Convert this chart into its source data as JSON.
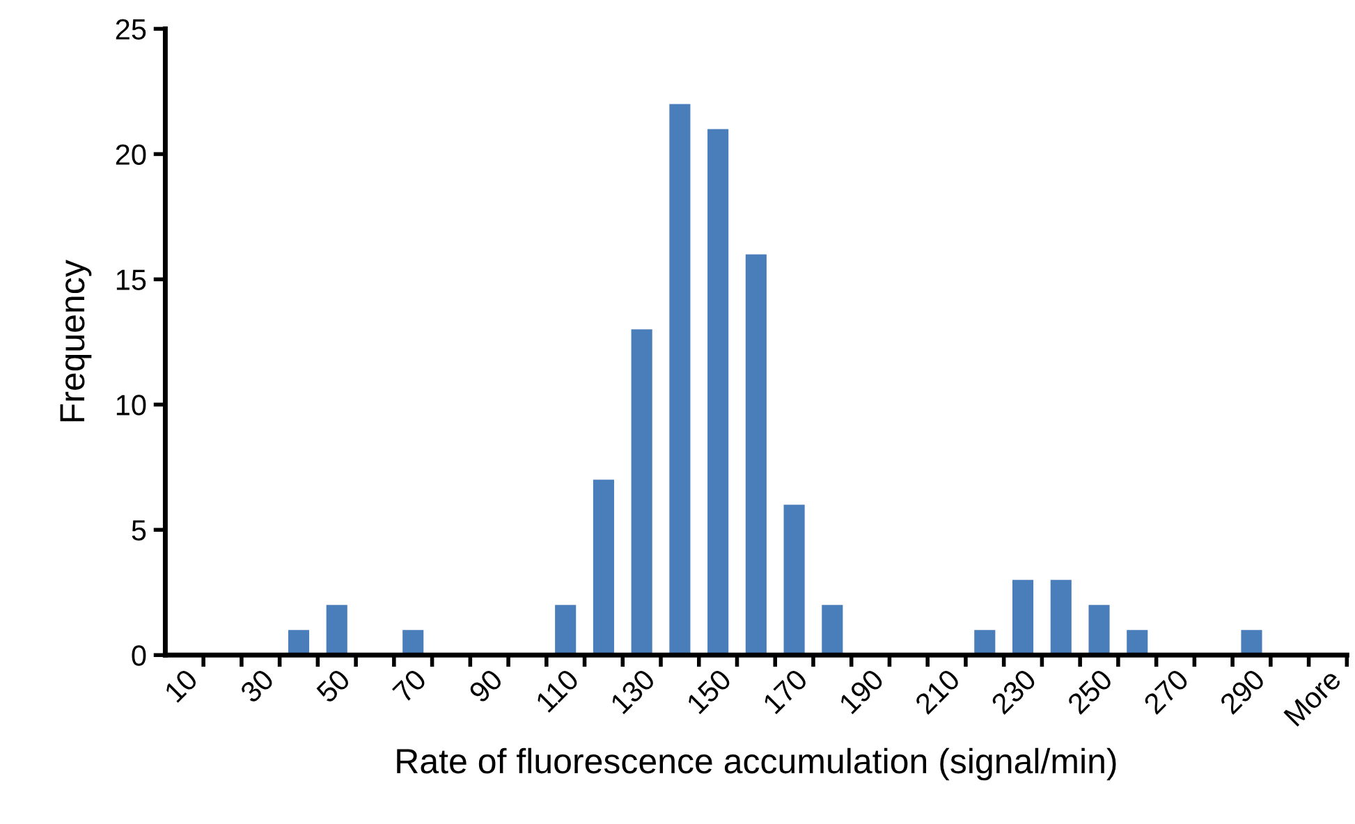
{
  "chart_data": {
    "type": "bar",
    "xlabel": "Rate of fluorescence accumulation (signal/min)",
    "ylabel": "Frequency",
    "categories": [
      "10",
      null,
      "30",
      null,
      "50",
      null,
      "70",
      null,
      "90",
      null,
      "110",
      null,
      "130",
      null,
      "150",
      null,
      "170",
      null,
      "190",
      null,
      "210",
      null,
      "230",
      null,
      "250",
      null,
      "270",
      null,
      "290",
      null,
      "More"
    ],
    "values": [
      0,
      0,
      0,
      1,
      2,
      0,
      1,
      0,
      0,
      0,
      2,
      7,
      13,
      22,
      21,
      16,
      6,
      2,
      0,
      0,
      0,
      1,
      3,
      3,
      2,
      1,
      0,
      0,
      1,
      0,
      0
    ],
    "color": "#4a7ebb",
    "ylim": [
      0,
      25
    ],
    "yticks": [
      0,
      5,
      10,
      15,
      20,
      25
    ],
    "grid": false,
    "legend": false
  }
}
